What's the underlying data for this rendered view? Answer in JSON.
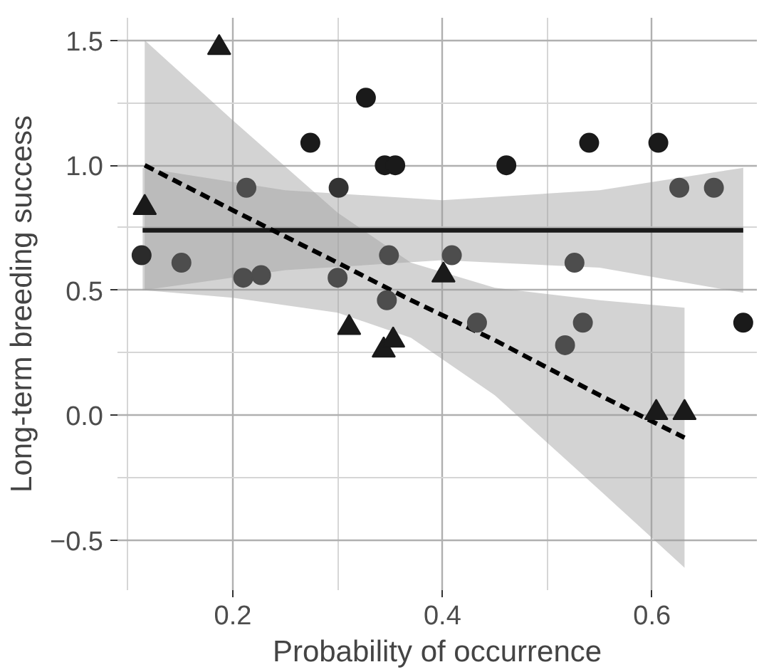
{
  "chart_data": {
    "type": "scatter",
    "xlabel": "Probability of occurrence",
    "ylabel": "Long-term breeding success",
    "xlim": [
      0.09,
      0.7
    ],
    "ylim": [
      -0.7,
      1.59
    ],
    "xticks": [
      {
        "value": 0.1,
        "label": null
      },
      0.2,
      {
        "value": 0.3,
        "label": null
      },
      0.4,
      {
        "value": 0.5,
        "label": null
      },
      0.6
    ],
    "yticks": [
      {
        "value": -0.5,
        "label": "−0.5"
      },
      {
        "value": -0.25,
        "label": null
      },
      {
        "value": 0,
        "label": "0.0"
      },
      {
        "value": 0.25,
        "label": null
      },
      0.5,
      {
        "value": 0.75,
        "label": null
      },
      {
        "value": 1,
        "label": "1.0"
      },
      {
        "value": 1.25,
        "label": null
      },
      1.5
    ],
    "grid": true,
    "series": [
      {
        "type": "line",
        "color": "#1a1a1a",
        "line_style": "solid",
        "x": [
          0.114,
          0.25,
          0.4,
          0.55,
          0.687
        ],
        "values": [
          0.74,
          0.74,
          0.74,
          0.74,
          0.74
        ],
        "lower": [
          0.5,
          0.58,
          0.62,
          0.59,
          0.49
        ],
        "upper": [
          0.99,
          0.9,
          0.86,
          0.9,
          0.99
        ]
      },
      {
        "type": "line",
        "color": "#000000",
        "line_style": "dashed",
        "x": [
          0.116,
          0.2,
          0.3,
          0.37,
          0.45,
          0.55,
          0.631
        ],
        "values": [
          1.0,
          0.82,
          0.61,
          0.46,
          0.3,
          0.08,
          -0.09
        ],
        "lower": [
          0.5,
          0.47,
          0.41,
          0.31,
          0.08,
          -0.3,
          -0.61
        ],
        "upper": [
          1.5,
          1.18,
          0.81,
          0.61,
          0.51,
          0.46,
          0.43
        ]
      },
      {
        "marker": "circle",
        "x": [
          0.274,
          0.327,
          0.345,
          0.355,
          0.461,
          0.54,
          0.606,
          0.687,
          0.113,
          0.301,
          0.213,
          0.151,
          0.21,
          0.227,
          0.3,
          0.349,
          0.347,
          0.409,
          0.526,
          0.626,
          0.659,
          0.433,
          0.534,
          0.517
        ],
        "values": [
          1.09,
          1.27,
          1.0,
          1.0,
          1.0,
          1.09,
          1.09,
          0.37,
          0.64,
          0.91,
          0.91,
          0.61,
          0.55,
          0.56,
          0.55,
          0.64,
          0.46,
          0.64,
          0.61,
          0.91,
          0.91,
          0.37,
          0.37,
          0.28
        ],
        "colors": [
          "#1a1a1a",
          "#1a1a1a",
          "#1a1a1a",
          "#1a1a1a",
          "#1a1a1a",
          "#1a1a1a",
          "#1a1a1a",
          "#1a1a1a",
          "#2b2b2b",
          "#333333",
          "#4d4d4d",
          "#4d4d4d",
          "#4d4d4d",
          "#4d4d4d",
          "#4d4d4d",
          "#4d4d4d",
          "#4d4d4d",
          "#4d4d4d",
          "#4d4d4d",
          "#4d4d4d",
          "#4d4d4d",
          "#4d4d4d",
          "#4d4d4d",
          "#4d4d4d"
        ]
      },
      {
        "marker": "triangle",
        "color": "#1a1a1a",
        "x": [
          0.116,
          0.187,
          0.311,
          0.344,
          0.353,
          0.401,
          0.604,
          0.631
        ],
        "values": [
          0.83,
          1.47,
          0.35,
          0.26,
          0.3,
          0.56,
          0.01,
          0.01
        ]
      }
    ]
  }
}
